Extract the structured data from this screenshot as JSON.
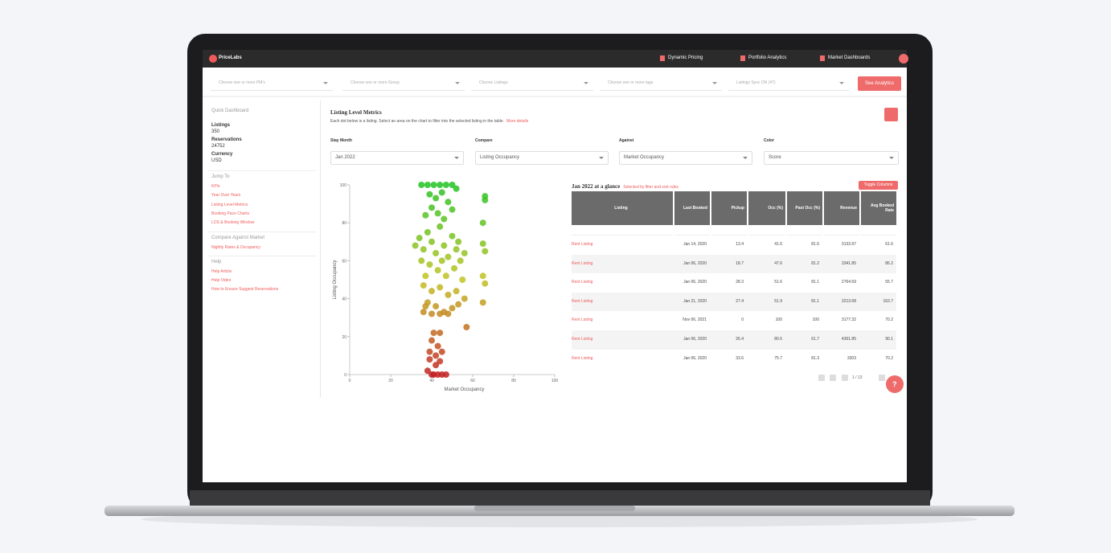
{
  "nav": {
    "logo": "PriceLabs",
    "items": [
      "Dynamic Pricing",
      "Portfolio Analytics",
      "Market Dashboards"
    ]
  },
  "filters": {
    "dropdowns": [
      "Choose one or more PM's",
      "Choose one or more Group",
      "Choose Listings",
      "Choose one or more tags",
      "Listings Sync ON (47)"
    ],
    "button": "See Analytics"
  },
  "sidebar": {
    "heading": "Quick Dashboard",
    "stats": [
      {
        "label": "Listings",
        "value": "350"
      },
      {
        "label": "Reservations",
        "value": "24752"
      },
      {
        "label": "Currency",
        "value": "USD"
      }
    ],
    "sections": [
      {
        "title": "Jump To",
        "links": [
          "KPIs",
          "Year Over Years",
          "Listing Level Metrics",
          "Booking Pace Charts",
          "LOS & Booking Window"
        ]
      },
      {
        "title": "Compare Against Market",
        "links": [
          "Nightly Rates & Occupancy"
        ]
      },
      {
        "title": "Help",
        "links": [
          "Help Article",
          "Help Video",
          "How to Ensure Suggest Reservations"
        ]
      }
    ]
  },
  "main": {
    "title": "Listing Level Metrics",
    "subtitle": "Each dot below is a listing. Select an area on the chart to filter into the selected listing in the table.",
    "subtitle_link": "More details",
    "controls": [
      {
        "label": "Stay Month",
        "value": "Jan 2022"
      },
      {
        "label": "Compare",
        "value": "Listing Occupancy"
      },
      {
        "label": "Against",
        "value": "Market Occupancy"
      },
      {
        "label": "Color",
        "value": "Score"
      }
    ]
  },
  "chart_data": {
    "type": "scatter",
    "xlabel": "Market Occupancy",
    "ylabel": "Listing Occupancy",
    "x": [
      35,
      38,
      41,
      44,
      47,
      50,
      52,
      39,
      42,
      45,
      48,
      40,
      43,
      37,
      50,
      46,
      66,
      66,
      65,
      65,
      66,
      65,
      66,
      65,
      32,
      34,
      36,
      38,
      40,
      42,
      44,
      46,
      48,
      50,
      52,
      54,
      35,
      39,
      43,
      47,
      51,
      55,
      37,
      45,
      53,
      56,
      36,
      40,
      44,
      48,
      52,
      56,
      38,
      42,
      46,
      50,
      36,
      40,
      44,
      48,
      37,
      53,
      57,
      41,
      44,
      40,
      43,
      39,
      42,
      45,
      39,
      42,
      44,
      38,
      41,
      43,
      45,
      47,
      40
    ],
    "y": [
      100,
      100,
      100,
      100,
      100,
      100,
      98,
      95,
      93,
      96,
      91,
      88,
      85,
      84,
      87,
      82,
      94,
      92,
      80,
      69,
      65,
      52,
      48,
      38,
      68,
      72,
      66,
      75,
      70,
      64,
      78,
      68,
      62,
      73,
      66,
      60,
      60,
      58,
      55,
      52,
      56,
      50,
      52,
      60,
      70,
      64,
      47,
      44,
      46,
      42,
      44,
      40,
      38,
      36,
      33,
      35,
      33,
      32,
      32,
      32,
      36,
      37,
      25,
      22,
      22,
      18,
      15,
      12,
      10,
      12,
      8,
      5,
      7,
      2,
      0,
      0,
      0,
      0,
      0
    ],
    "xlim": [
      0,
      100
    ],
    "ylim": [
      0,
      100
    ],
    "xticks": [
      0,
      20,
      40,
      60,
      80,
      100
    ],
    "yticks": [
      0,
      20,
      40,
      60,
      80,
      100
    ]
  },
  "table": {
    "title": "Jan 2022 at a glance",
    "note": "Selected by filter and sort rules",
    "button": "Toggle Columns",
    "columns": [
      "Listing",
      "Last Booked",
      "Pickup",
      "Occ (%)",
      "Past Occ (%)",
      "Revenue",
      "Avg Booked Rate"
    ],
    "rows": [
      [
        "Rent Listing",
        "Jan 14, 2020",
        "13.4",
        "41.6",
        "81.6",
        "3133.97",
        "61.6"
      ],
      [
        "Rent Listing",
        "Jan 06, 2020",
        "18.7",
        "47.6",
        "81.2",
        "3341.85",
        "86.2"
      ],
      [
        "Rent Listing",
        "Jan 06, 2020",
        "28.3",
        "51.6",
        "81.1",
        "2764.69",
        "55.7"
      ],
      [
        "Rent Listing",
        "Jan 21, 2020",
        "27.4",
        "51.9",
        "81.1",
        "3213.68",
        "163.7"
      ],
      [
        "Rent Listing",
        "Nov 06, 2021",
        "0",
        "100",
        "100",
        "3177.32",
        "70.2"
      ],
      [
        "Rent Listing",
        "Jan 06, 2020",
        "26.4",
        "80.5",
        "61.7",
        "4301.85",
        "90.1"
      ],
      [
        "Rent Listing",
        "Jan 06, 2020",
        "33.6",
        "75.7",
        "81.3",
        "3303",
        "70.2"
      ]
    ],
    "pagination": "1 / 13"
  },
  "help_button": "?"
}
